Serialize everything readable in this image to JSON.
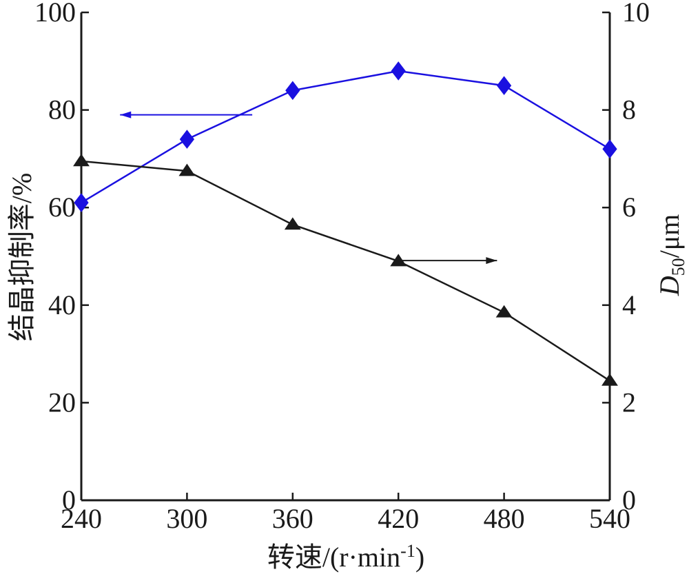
{
  "chart_data": {
    "type": "line",
    "xlabel": "转速/(r·min",
    "xlabel_sup": "-1",
    "xlabel_tail": ")",
    "ylabel_left": "结晶抑制率/%",
    "ylabel_right_italic": "D",
    "ylabel_right_sub": "50",
    "ylabel_right_unit": "/μm",
    "x": [
      240,
      300,
      360,
      420,
      480,
      540
    ],
    "xlim": [
      240,
      540
    ],
    "x_ticks": [
      "240",
      "300",
      "360",
      "420",
      "480",
      "540"
    ],
    "ylim_left": [
      0,
      100
    ],
    "y_left_ticks": [
      "0",
      "20",
      "40",
      "60",
      "80",
      "100"
    ],
    "ylim_right": [
      0,
      10
    ],
    "y_right_ticks": [
      "0",
      "2",
      "4",
      "6",
      "8",
      "10"
    ],
    "grid": false,
    "series": [
      {
        "axis": "left",
        "marker": "diamond",
        "color": "#1a10e0",
        "values": [
          61,
          74,
          84,
          88,
          85,
          72
        ]
      },
      {
        "axis": "right",
        "marker": "triangle",
        "color": "#1a1a1a",
        "values": [
          6.95,
          6.75,
          5.65,
          4.9,
          3.85,
          2.45
        ]
      }
    ],
    "annotations": [
      {
        "type": "arrow",
        "direction": "left",
        "points_to_axis": "left",
        "series": 0
      },
      {
        "type": "arrow",
        "direction": "right",
        "points_to_axis": "right",
        "series": 1
      }
    ]
  }
}
